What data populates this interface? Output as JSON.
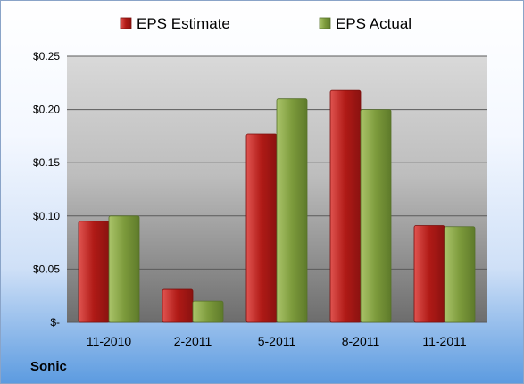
{
  "company": "Sonic",
  "chart_data": {
    "type": "bar",
    "categories": [
      "11-2010",
      "2-2011",
      "5-2011",
      "8-2011",
      "11-2011"
    ],
    "series": [
      {
        "name": "EPS Estimate",
        "color": "#c0201c",
        "values": [
          0.095,
          0.031,
          0.177,
          0.218,
          0.091
        ]
      },
      {
        "name": "EPS Actual",
        "color": "#8aa84a",
        "values": [
          0.1,
          0.02,
          0.21,
          0.2,
          0.09
        ]
      }
    ],
    "ylim": [
      0,
      0.25
    ],
    "yticks": [
      0,
      0.05,
      0.1,
      0.15,
      0.2,
      0.25
    ],
    "ytick_labels": [
      "$-",
      "$0.05",
      "$0.10",
      "$0.15",
      "$0.20",
      "$0.25"
    ],
    "grid": true,
    "legend": "top-center",
    "title": "",
    "xlabel": "",
    "ylabel": ""
  }
}
